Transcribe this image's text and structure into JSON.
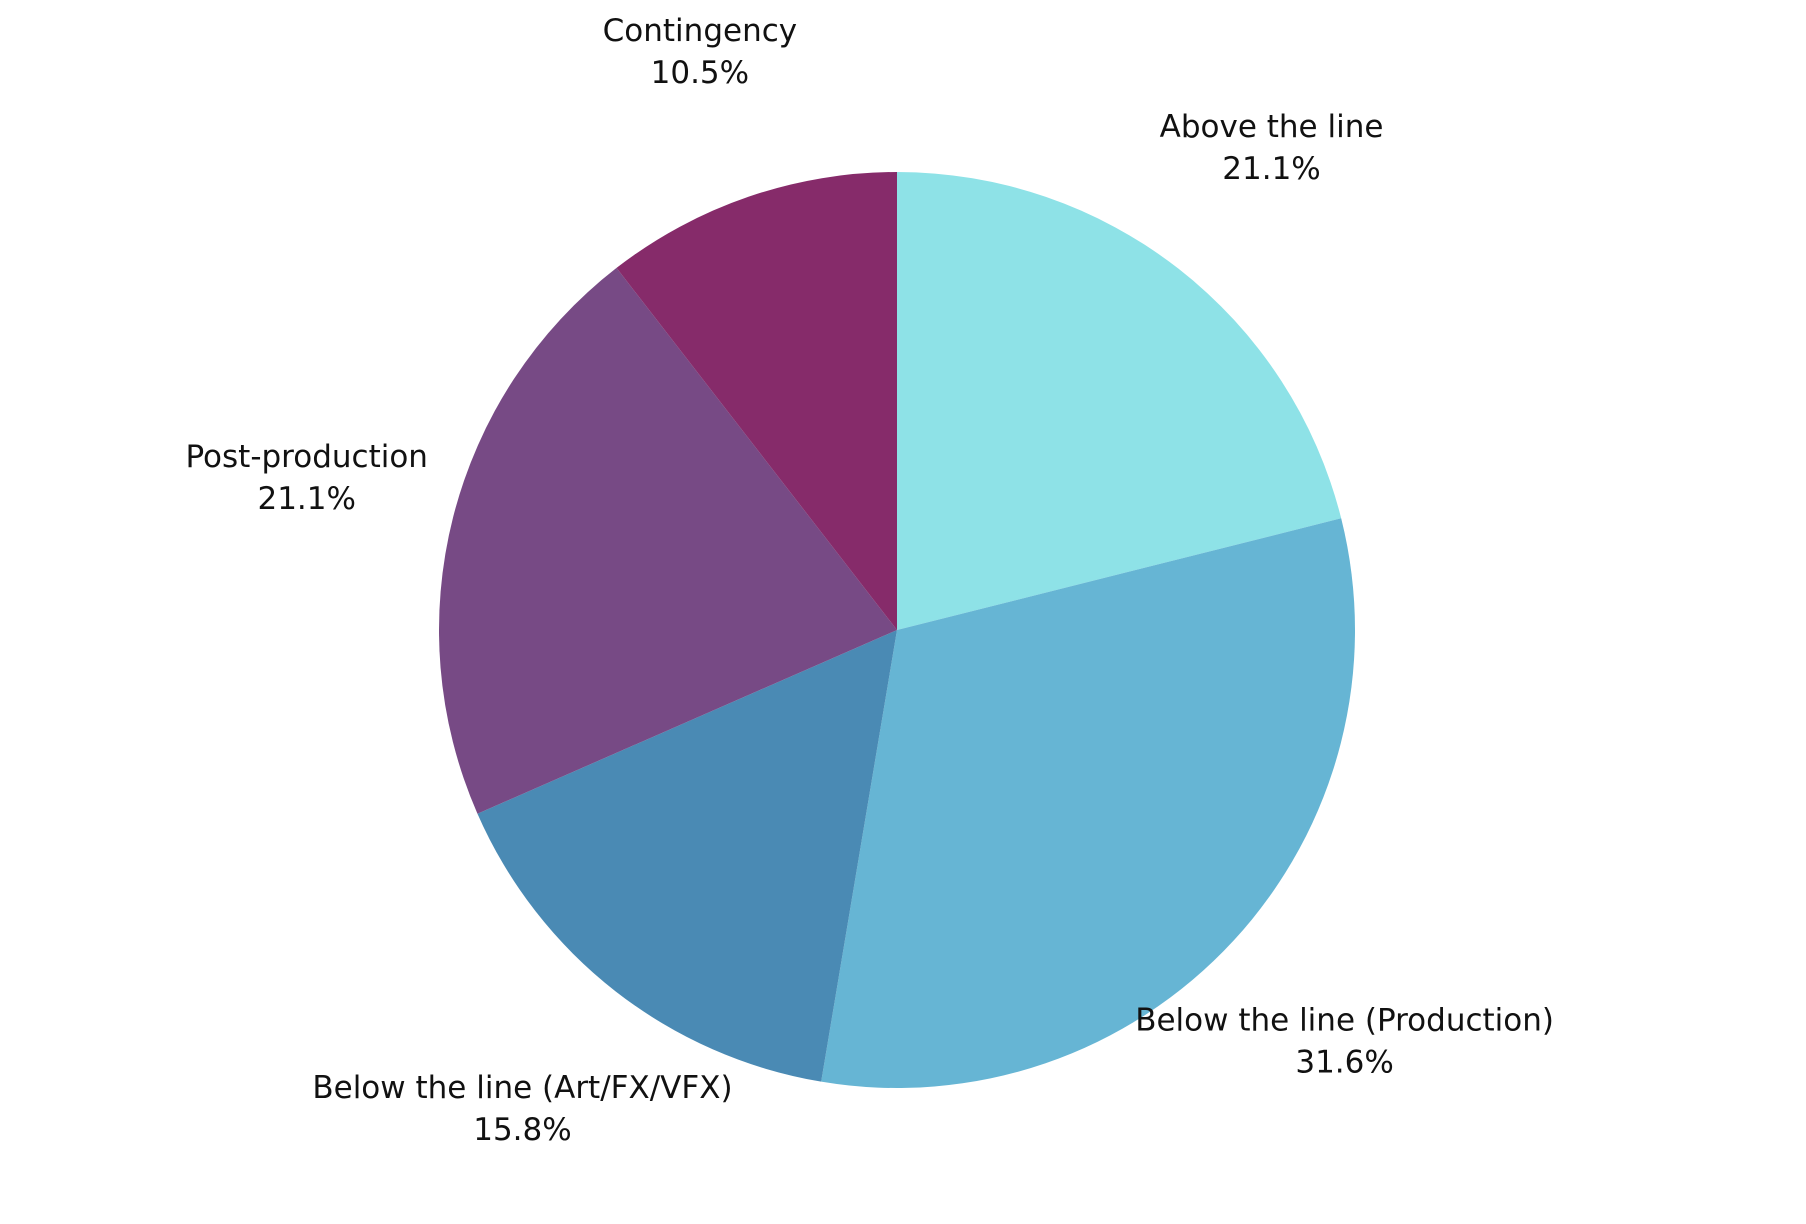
{
  "chart_data": {
    "type": "pie",
    "categories": [
      "Above the line",
      "Below the line (Production)",
      "Below the line (Art/FX/VFX)",
      "Post-production",
      "Contingency"
    ],
    "values": [
      21.1,
      31.6,
      15.8,
      21.1,
      10.5
    ],
    "value_labels": [
      "21.1%",
      "31.6%",
      "15.8%",
      "21.1%",
      "10.5%"
    ],
    "colors": [
      "#8ee2e7",
      "#66b5d4",
      "#4a8ab4",
      "#774a85",
      "#862b6a"
    ]
  }
}
